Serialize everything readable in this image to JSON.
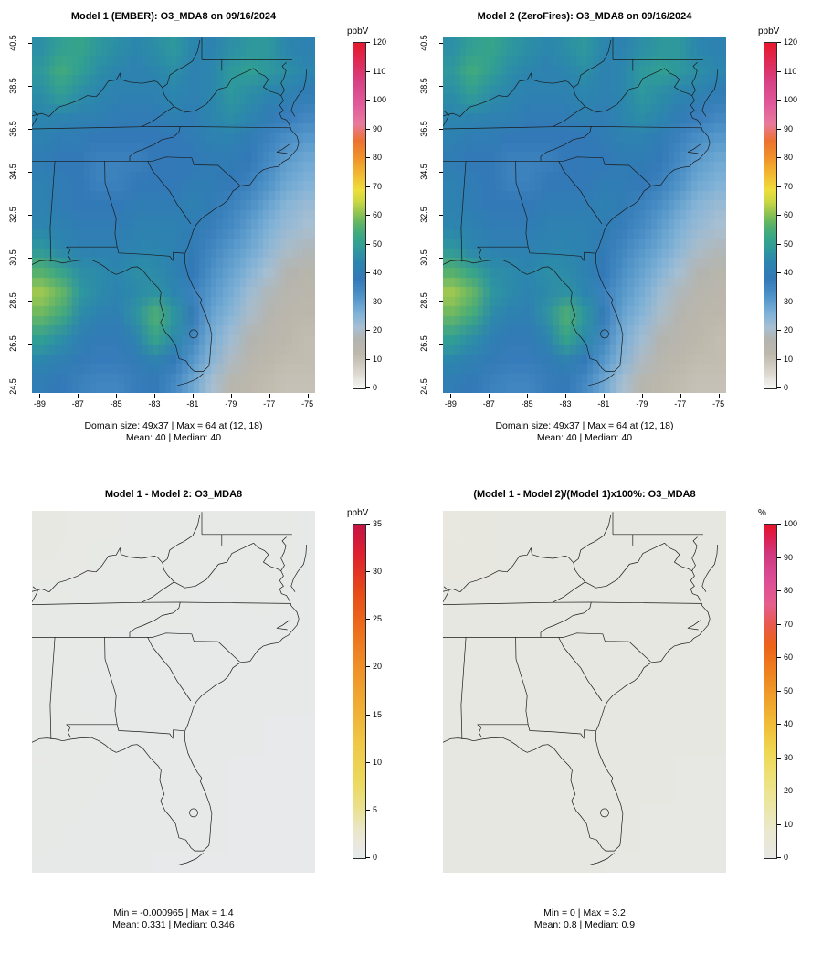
{
  "chart_data": {
    "type": "heatmap",
    "axes": {
      "x_ticks": [
        -89,
        -87,
        -85,
        -83,
        -81,
        -79,
        -77,
        -75
      ],
      "y_ticks": [
        24.5,
        26.5,
        28.5,
        30.5,
        32.5,
        34.5,
        36.5,
        38.5,
        40.5
      ]
    },
    "grids": {
      "o3": {
        "lon_range": [
          -89.4,
          -74.6
        ],
        "lat_range": [
          24.2,
          40.8
        ],
        "values": [
          [
            46,
            50,
            52,
            48,
            46,
            44,
            46,
            48,
            44,
            42,
            46,
            48,
            48,
            44,
            42
          ],
          [
            48,
            54,
            50,
            46,
            44,
            42,
            44,
            46,
            42,
            44,
            48,
            50,
            48,
            46,
            44
          ],
          [
            46,
            50,
            46,
            44,
            42,
            42,
            42,
            44,
            42,
            44,
            48,
            46,
            44,
            42,
            40
          ],
          [
            44,
            44,
            42,
            42,
            40,
            40,
            40,
            42,
            40,
            44,
            46,
            44,
            40,
            37,
            35
          ],
          [
            42,
            40,
            40,
            38,
            38,
            38,
            38,
            38,
            40,
            42,
            42,
            40,
            36,
            33,
            31
          ],
          [
            40,
            38,
            38,
            36,
            36,
            36,
            38,
            38,
            38,
            40,
            40,
            38,
            34,
            30,
            28
          ],
          [
            42,
            40,
            38,
            36,
            36,
            38,
            38,
            38,
            40,
            40,
            38,
            36,
            32,
            28,
            26
          ],
          [
            42,
            40,
            38,
            38,
            38,
            40,
            40,
            40,
            42,
            40,
            36,
            33,
            29,
            25,
            23
          ],
          [
            44,
            42,
            40,
            40,
            40,
            42,
            42,
            42,
            40,
            37,
            34,
            30,
            26,
            23,
            21
          ],
          [
            48,
            44,
            42,
            42,
            42,
            43,
            44,
            42,
            39,
            35,
            31,
            28,
            24,
            20,
            18
          ],
          [
            56,
            52,
            46,
            45,
            44,
            46,
            45,
            42,
            38,
            33,
            29,
            25,
            21,
            17,
            15
          ],
          [
            62,
            58,
            48,
            45,
            43,
            45,
            47,
            44,
            36,
            31,
            27,
            22,
            18,
            15,
            13
          ],
          [
            58,
            54,
            45,
            42,
            41,
            47,
            56,
            48,
            38,
            29,
            25,
            20,
            16,
            13,
            12
          ],
          [
            50,
            46,
            41,
            39,
            39,
            43,
            52,
            45,
            35,
            27,
            22,
            17,
            14,
            12,
            11
          ],
          [
            44,
            41,
            39,
            37,
            37,
            39,
            42,
            38,
            31,
            25,
            19,
            15,
            12,
            11,
            11
          ],
          [
            40,
            38,
            36,
            35,
            35,
            37,
            38,
            34,
            28,
            21,
            15,
            12,
            11,
            10,
            10
          ]
        ]
      },
      "diff": {
        "lon_range": [
          -89.4,
          -74.6
        ],
        "lat_range": [
          24.2,
          40.8
        ],
        "values": [
          [
            0.8,
            0.7,
            0.6,
            0.5,
            0.5,
            0.4,
            0.5,
            0.4
          ],
          [
            0.7,
            0.6,
            0.5,
            0.5,
            0.4,
            0.4,
            0.5,
            0.4
          ],
          [
            0.5,
            0.5,
            0.4,
            0.4,
            0.4,
            0.3,
            0.4,
            0.3
          ],
          [
            0.4,
            0.4,
            0.3,
            0.3,
            0.3,
            0.3,
            0.3,
            0.3
          ],
          [
            0.5,
            0.4,
            0.3,
            0.3,
            0.3,
            0.3,
            0.2,
            0.2
          ],
          [
            0.6,
            0.5,
            0.4,
            0.3,
            0.3,
            0.2,
            0.2,
            0.2
          ],
          [
            0.5,
            0.4,
            0.3,
            0.3,
            0.3,
            0.2,
            0.2,
            0.2
          ],
          [
            0.4,
            0.3,
            0.3,
            0.2,
            0.2,
            0.2,
            0.2,
            0.2
          ]
        ]
      },
      "pct": {
        "lon_range": [
          -89.4,
          -74.6
        ],
        "lat_range": [
          24.2,
          40.8
        ],
        "values": [
          [
            1.5,
            1.2,
            1.0,
            0.9,
            0.8,
            0.8,
            0.9,
            0.8
          ],
          [
            1.2,
            1.0,
            0.9,
            0.8,
            0.8,
            0.7,
            0.9,
            0.8
          ],
          [
            1.0,
            0.9,
            0.8,
            0.8,
            0.7,
            0.7,
            0.8,
            0.7
          ],
          [
            0.9,
            0.8,
            0.8,
            0.7,
            0.7,
            0.7,
            0.7,
            0.7
          ],
          [
            1.0,
            0.9,
            0.8,
            0.7,
            0.7,
            0.6,
            0.6,
            0.6
          ],
          [
            1.1,
            1.0,
            0.9,
            0.8,
            0.7,
            0.6,
            0.5,
            0.5
          ],
          [
            1.0,
            0.9,
            0.8,
            0.7,
            0.6,
            0.5,
            0.5,
            0.5
          ],
          [
            0.8,
            0.8,
            0.7,
            0.6,
            0.5,
            0.5,
            0.4,
            0.4
          ]
        ]
      }
    },
    "panels": [
      {
        "name": "model1-ember",
        "title": "Model 1 (EMBER): O3_MDA8 on 09/16/2024",
        "units": "ppbV",
        "zlim": [
          0,
          120
        ],
        "colorbar_ticks": [
          0,
          10,
          20,
          30,
          40,
          50,
          60,
          70,
          80,
          90,
          100,
          110,
          120
        ],
        "grid": "o3",
        "colormap": [
          [
            0,
            "#f7f6f3"
          ],
          [
            6,
            "#d8d4cb"
          ],
          [
            12,
            "#bdb8ac"
          ],
          [
            17,
            "#b3b4b0"
          ],
          [
            21,
            "#a8c0d3"
          ],
          [
            26,
            "#7fb2d8"
          ],
          [
            32,
            "#4e93c8"
          ],
          [
            38,
            "#3379b8"
          ],
          [
            44,
            "#2c86ae"
          ],
          [
            49,
            "#2f9d99"
          ],
          [
            53,
            "#3aa884"
          ],
          [
            57,
            "#5bb368"
          ],
          [
            61,
            "#93c452"
          ],
          [
            65,
            "#cdd844"
          ],
          [
            69,
            "#eede3c"
          ],
          [
            74,
            "#f2bc32"
          ],
          [
            80,
            "#f0942a"
          ],
          [
            86,
            "#ec7230"
          ],
          [
            92,
            "#e87a9e"
          ],
          [
            99,
            "#e05a9a"
          ],
          [
            106,
            "#d84488"
          ],
          [
            112,
            "#dd2f62"
          ],
          [
            120,
            "#e6192e"
          ]
        ],
        "stats_line1": "Domain size: 49x37 | Max = 64 at (12, 18)",
        "stats_line2": "Mean: 40 |  Median: 40",
        "stats": {
          "domain_size": "49x37",
          "max": 64,
          "max_at": "(12, 18)",
          "mean": 40,
          "median": 40
        }
      },
      {
        "name": "model2-zerofires",
        "title": "Model 2 (ZeroFires): O3_MDA8 on 09/16/2024",
        "units": "ppbV",
        "zlim": [
          0,
          120
        ],
        "colorbar_ticks": [
          0,
          10,
          20,
          30,
          40,
          50,
          60,
          70,
          80,
          90,
          100,
          110,
          120
        ],
        "grid": "o3",
        "colormap": [
          [
            0,
            "#f7f6f3"
          ],
          [
            6,
            "#d8d4cb"
          ],
          [
            12,
            "#bdb8ac"
          ],
          [
            17,
            "#b3b4b0"
          ],
          [
            21,
            "#a8c0d3"
          ],
          [
            26,
            "#7fb2d8"
          ],
          [
            32,
            "#4e93c8"
          ],
          [
            38,
            "#3379b8"
          ],
          [
            44,
            "#2c86ae"
          ],
          [
            49,
            "#2f9d99"
          ],
          [
            53,
            "#3aa884"
          ],
          [
            57,
            "#5bb368"
          ],
          [
            61,
            "#93c452"
          ],
          [
            65,
            "#cdd844"
          ],
          [
            69,
            "#eede3c"
          ],
          [
            74,
            "#f2bc32"
          ],
          [
            80,
            "#f0942a"
          ],
          [
            86,
            "#ec7230"
          ],
          [
            92,
            "#e87a9e"
          ],
          [
            99,
            "#e05a9a"
          ],
          [
            106,
            "#d84488"
          ],
          [
            112,
            "#dd2f62"
          ],
          [
            120,
            "#e6192e"
          ]
        ],
        "stats_line1": "Domain size: 49x37 | Max = 64 at (12, 18)",
        "stats_line2": "Mean: 40 |  Median: 40",
        "stats": {
          "domain_size": "49x37",
          "max": 64,
          "max_at": "(12, 18)",
          "mean": 40,
          "median": 40
        }
      },
      {
        "name": "difference",
        "title": "Model 1 - Model 2: O3_MDA8",
        "units": "ppbV",
        "zlim": [
          0,
          35
        ],
        "colorbar_ticks": [
          0,
          5,
          10,
          15,
          20,
          25,
          30,
          35
        ],
        "grid": "diff",
        "colormap": [
          [
            0,
            "#e6e9ec"
          ],
          [
            1.5,
            "#eae8dc"
          ],
          [
            3,
            "#eae6c8"
          ],
          [
            5,
            "#eae194"
          ],
          [
            8,
            "#ecd95e"
          ],
          [
            12,
            "#f0c846"
          ],
          [
            16,
            "#f0ad33"
          ],
          [
            20,
            "#ef9127"
          ],
          [
            24,
            "#ed6f1c"
          ],
          [
            28,
            "#e64a18"
          ],
          [
            32,
            "#de2030"
          ],
          [
            35,
            "#c51345"
          ]
        ],
        "stats_line1": "Min = -0.000965 | Max = 1.4",
        "stats_line2": "Mean: 0.331 |  Median: 0.346",
        "stats": {
          "min": -0.000965,
          "max": 1.4,
          "mean": 0.331,
          "median": 0.346
        }
      },
      {
        "name": "percent-difference",
        "title": "(Model 1 - Model 2)/(Model 1)x100%: O3_MDA8",
        "units": "%",
        "zlim": [
          0,
          100
        ],
        "colorbar_ticks": [
          0,
          10,
          20,
          30,
          40,
          50,
          60,
          70,
          80,
          90,
          100
        ],
        "grid": "pct",
        "colormap": [
          [
            0,
            "#e7e7e4"
          ],
          [
            8,
            "#eae8cf"
          ],
          [
            16,
            "#ebe6a4"
          ],
          [
            24,
            "#ede17a"
          ],
          [
            32,
            "#efd753"
          ],
          [
            40,
            "#f0bd38"
          ],
          [
            48,
            "#efa02b"
          ],
          [
            56,
            "#ee8120"
          ],
          [
            64,
            "#ec6319"
          ],
          [
            70,
            "#e85a4e"
          ],
          [
            76,
            "#e45f8e"
          ],
          [
            84,
            "#dc4d95"
          ],
          [
            91,
            "#d03a80"
          ],
          [
            96,
            "#dc2253"
          ],
          [
            100,
            "#e5142b"
          ]
        ],
        "stats_line1": "Min = 0 | Max = 3.2",
        "stats_line2": "Mean: 0.8 |  Median: 0.9",
        "stats": {
          "min": 0,
          "max": 3.2,
          "mean": 0.8,
          "median": 0.9
        }
      }
    ]
  }
}
